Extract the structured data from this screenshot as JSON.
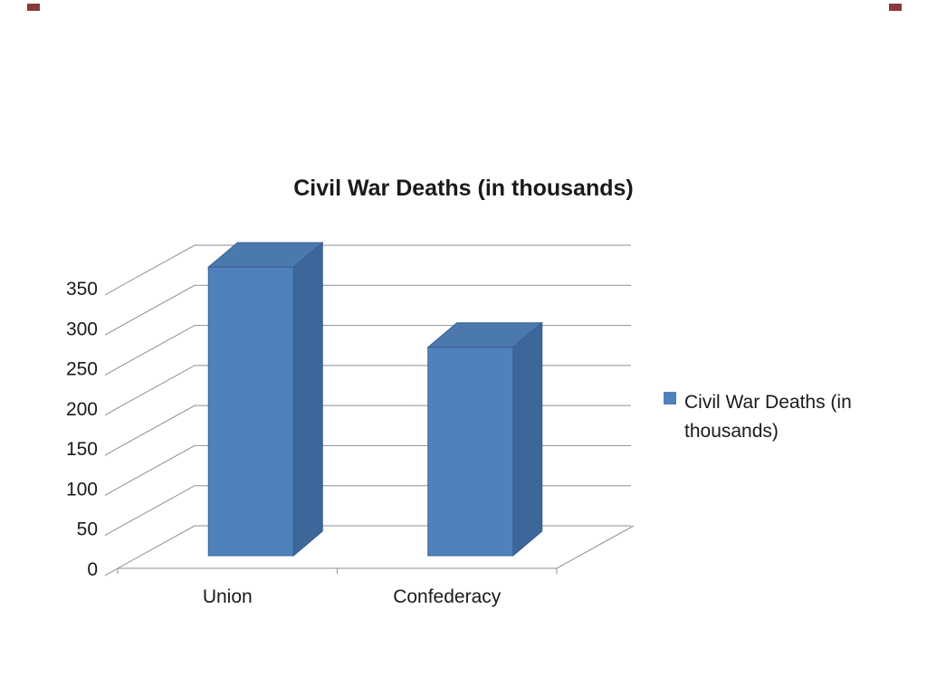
{
  "page": {
    "background": "#ffffff"
  },
  "title": "Civil War Deaths (in thousands)",
  "legend": {
    "label": "Civil War Deaths (in thousands)",
    "swatch_color": "#4f81bd"
  },
  "chart_data": {
    "type": "bar",
    "style": "3d-column",
    "title": "Civil War Deaths (in thousands)",
    "categories": [
      "Union",
      "Confederacy"
    ],
    "series": [
      {
        "name": "Civil War Deaths (in thousands)",
        "values": [
          360,
          260
        ]
      }
    ],
    "ylim": [
      0,
      350
    ],
    "ytick_interval": 50,
    "yticks": [
      0,
      50,
      100,
      150,
      200,
      250,
      300,
      350
    ],
    "grid": true,
    "legend_position": "right",
    "xlabel": "",
    "ylabel": "",
    "bar_color": "#4f81bd",
    "bar_top_color": "#4b79ad",
    "bar_side_color": "#3d679b",
    "bar_edge_color": "#365f91",
    "grid_color": "#8e8e8e",
    "text_color": "#1a1a1a"
  }
}
